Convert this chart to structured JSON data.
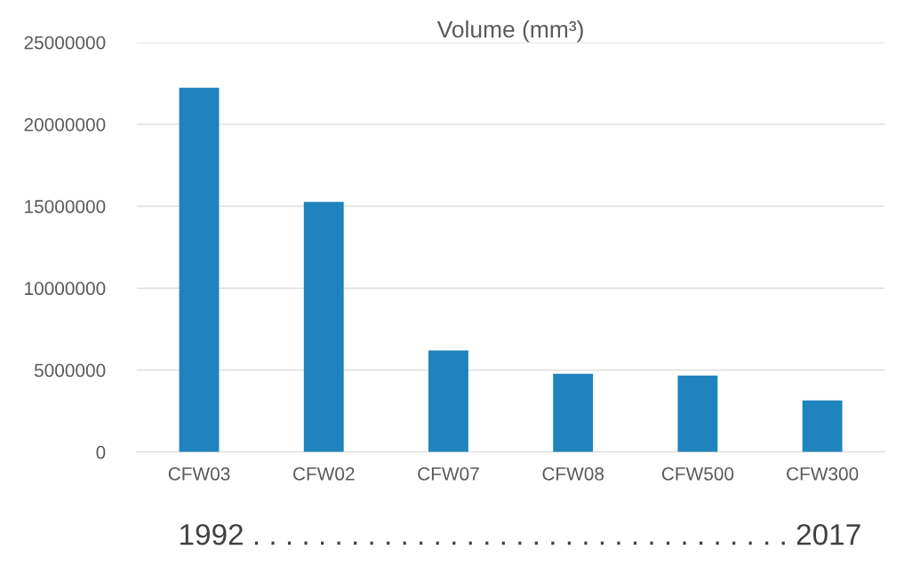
{
  "chart_data": {
    "type": "bar",
    "title": "Volume (mm³)",
    "categories": [
      "CFW03",
      "CFW02",
      "CFW07",
      "CFW08",
      "CFW500",
      "CFW300"
    ],
    "values": [
      22230000,
      15270000,
      6200000,
      4780000,
      4670000,
      3150000
    ],
    "color": "#1f83bd",
    "ylim": [
      0,
      25000000
    ],
    "yticks": [
      0,
      5000000,
      10000000,
      15000000,
      20000000,
      25000000
    ],
    "grid": "y",
    "annotations": [
      "1992 . . . . . . . . . . . . . . . . . . . . . . . . . . . . . . . . . 2017"
    ]
  }
}
